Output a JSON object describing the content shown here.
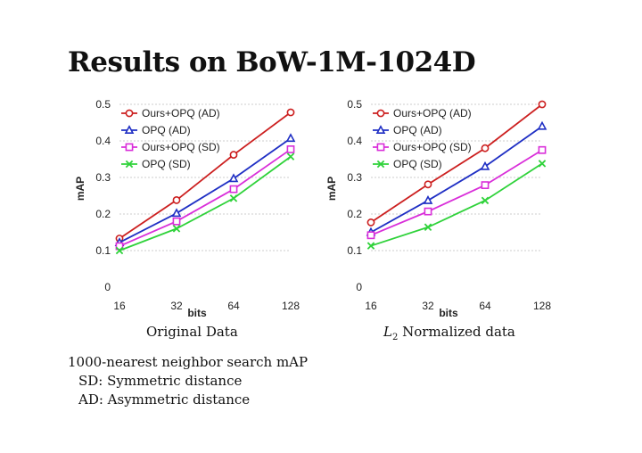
{
  "slide": {
    "title": "Results on BoW-1M-1024D",
    "notes": {
      "line1": "1000-nearest neighbor search mAP",
      "line2": "SD: Symmetric distance",
      "line3": "AD: Asymmetric distance"
    }
  },
  "colors": {
    "ours_opq_ad": "#cc1f1f",
    "opq_ad": "#1f2fc4",
    "ours_opq_sd": "#d92ed9",
    "opq_sd": "#2fd23a",
    "grid": "#bdbdbd",
    "axis": "#333333"
  },
  "chart_data": [
    {
      "type": "line",
      "caption": "Original Data",
      "xlabel": "bits",
      "ylabel": "mAP",
      "x": [
        16,
        32,
        64,
        128
      ],
      "x_tick_labels": [
        "16",
        "32",
        "64",
        "128"
      ],
      "x_scale": "log2",
      "ylim": [
        0,
        0.5
      ],
      "y_ticks": [
        0,
        0.1,
        0.2,
        0.3,
        0.4,
        0.5
      ],
      "y_tick_labels": [
        "0",
        "0.1",
        "0.2",
        "0.3",
        "0.4",
        "0.5"
      ],
      "grid": "horizontal",
      "legend": "top-left",
      "series": [
        {
          "name": "Ours+OPQ (AD)",
          "values": [
            0.133,
            0.238,
            0.362,
            0.478
          ],
          "marker": "circle"
        },
        {
          "name": "OPQ (AD)",
          "values": [
            0.122,
            0.202,
            0.297,
            0.407
          ],
          "marker": "triangle"
        },
        {
          "name": "Ours+OPQ (SD)",
          "values": [
            0.112,
            0.18,
            0.268,
            0.377
          ],
          "marker": "square"
        },
        {
          "name": "OPQ (SD)",
          "values": [
            0.1,
            0.16,
            0.243,
            0.357
          ],
          "marker": "x"
        }
      ]
    },
    {
      "type": "line",
      "caption_math": "L",
      "caption_sub": "2",
      "caption": " Normalized data",
      "xlabel": "bits",
      "ylabel": "mAP",
      "x": [
        16,
        32,
        64,
        128
      ],
      "x_tick_labels": [
        "16",
        "32",
        "64",
        "128"
      ],
      "x_scale": "log2",
      "ylim": [
        0,
        0.5
      ],
      "y_ticks": [
        0,
        0.1,
        0.2,
        0.3,
        0.4,
        0.5
      ],
      "y_tick_labels": [
        "0",
        "0.1",
        "0.2",
        "0.3",
        "0.4",
        "0.5"
      ],
      "grid": "horizontal",
      "legend": "top-left",
      "series": [
        {
          "name": "Ours+OPQ (AD)",
          "values": [
            0.177,
            0.281,
            0.38,
            0.5
          ],
          "marker": "circle"
        },
        {
          "name": "OPQ (AD)",
          "values": [
            0.15,
            0.237,
            0.33,
            0.44
          ],
          "marker": "triangle"
        },
        {
          "name": "Ours+OPQ (SD)",
          "values": [
            0.142,
            0.207,
            0.279,
            0.375
          ],
          "marker": "square"
        },
        {
          "name": "OPQ (SD)",
          "values": [
            0.113,
            0.164,
            0.237,
            0.338
          ],
          "marker": "x"
        }
      ]
    }
  ]
}
